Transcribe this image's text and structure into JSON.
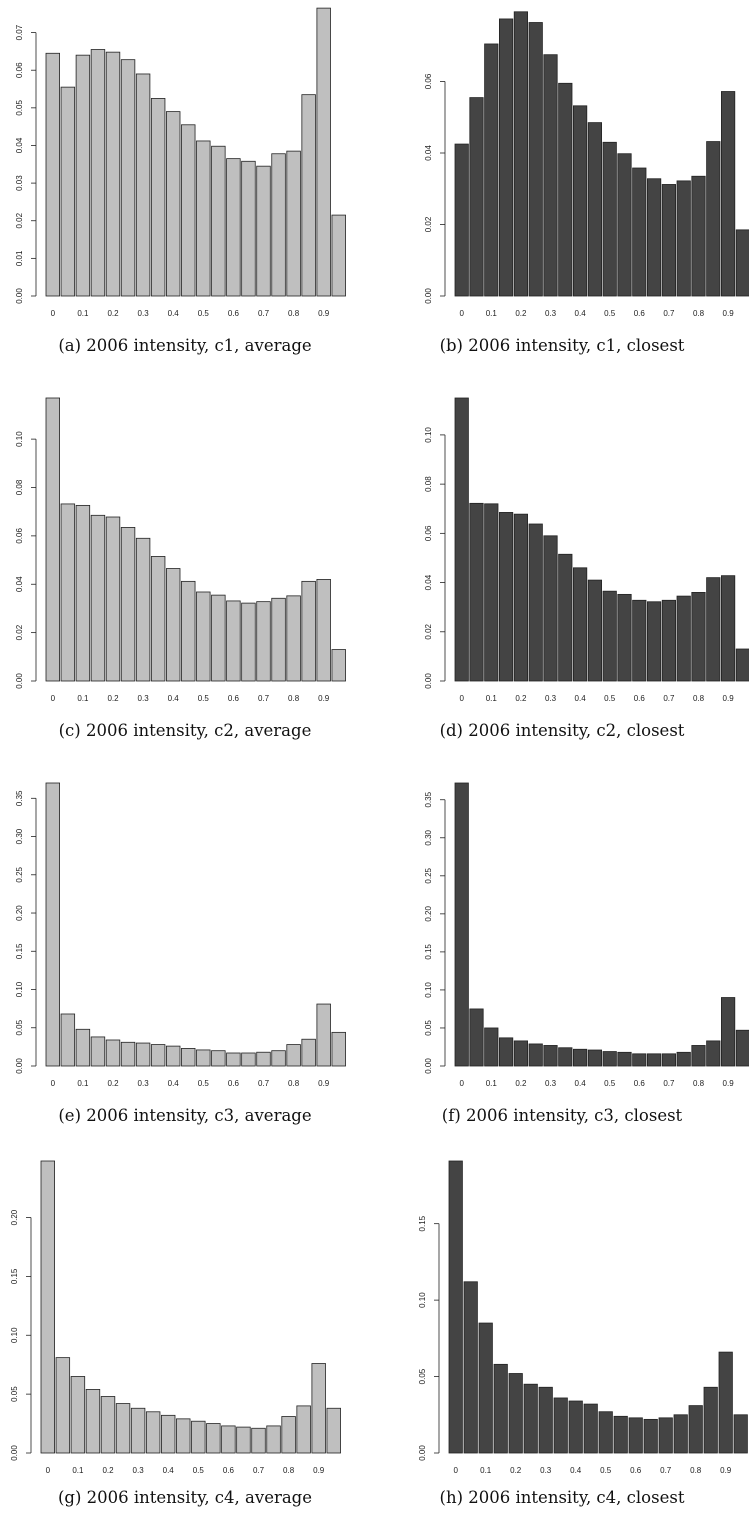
{
  "figure": {
    "background": "#ffffff",
    "panels": [
      {
        "caption": "(a) 2006 intensity, c1, average"
      },
      {
        "caption": "(b) 2006 intensity, c1, closest"
      },
      {
        "caption": "(c) 2006 intensity, c2, average"
      },
      {
        "caption": "(d) 2006 intensity, c2, closest"
      },
      {
        "caption": "(e) 2006 intensity, c3, average"
      },
      {
        "caption": "(f) 2006 intensity, c3, closest"
      },
      {
        "caption": "(g) 2006 intensity, c4, average"
      },
      {
        "caption": "(h) 2006 intensity, c4, closest"
      }
    ]
  },
  "chart_data": [
    {
      "type": "bar",
      "title": "(a) 2006 intensity, c1, average",
      "bar_color": "#bfbfbf",
      "x_tick_labels": [
        "0",
        "0.1",
        "0.2",
        "0.3",
        "0.4",
        "0.5",
        "0.6",
        "0.7",
        "0.8",
        "0.9"
      ],
      "y_ticks": [
        0.0,
        0.01,
        0.02,
        0.03,
        0.04,
        0.05,
        0.06,
        0.07
      ],
      "y_tick_labels": [
        "0.00",
        "0.01",
        "0.02",
        "0.03",
        "0.04",
        "0.05",
        "0.06",
        "0.07"
      ],
      "ylim": [
        0,
        0.076
      ],
      "values": [
        0.0645,
        0.0555,
        0.064,
        0.0655,
        0.0648,
        0.0628,
        0.059,
        0.0525,
        0.049,
        0.0455,
        0.0412,
        0.0398,
        0.0365,
        0.0358,
        0.0345,
        0.0378,
        0.0385,
        0.0535,
        0.0765,
        0.0215
      ]
    },
    {
      "type": "bar",
      "title": "(b) 2006 intensity, c1, closest",
      "bar_color": "#444444",
      "x_tick_labels": [
        "0",
        "0.1",
        "0.2",
        "0.3",
        "0.4",
        "0.5",
        "0.6",
        "0.7",
        "0.8",
        "0.9"
      ],
      "y_ticks": [
        0.0,
        0.02,
        0.04,
        0.06
      ],
      "y_tick_labels": [
        "0.00",
        "0.02",
        "0.04",
        "0.06"
      ],
      "ylim": [
        0,
        0.08
      ],
      "values": [
        0.0425,
        0.0555,
        0.0705,
        0.0775,
        0.0795,
        0.0765,
        0.0675,
        0.0595,
        0.0532,
        0.0485,
        0.043,
        0.0398,
        0.0358,
        0.0328,
        0.0312,
        0.0322,
        0.0335,
        0.0432,
        0.0572,
        0.0185
      ]
    },
    {
      "type": "bar",
      "title": "(c) 2006 intensity, c2, average",
      "bar_color": "#bfbfbf",
      "x_tick_labels": [
        "0",
        "0.1",
        "0.2",
        "0.3",
        "0.4",
        "0.5",
        "0.6",
        "0.7",
        "0.8",
        "0.9"
      ],
      "y_ticks": [
        0.0,
        0.02,
        0.04,
        0.06,
        0.08,
        0.1
      ],
      "y_tick_labels": [
        "0.00",
        "0.02",
        "0.04",
        "0.06",
        "0.08",
        "0.10"
      ],
      "ylim": [
        0,
        0.117
      ],
      "values": [
        0.117,
        0.0732,
        0.0726,
        0.0685,
        0.0678,
        0.0635,
        0.059,
        0.0515,
        0.0465,
        0.0412,
        0.0368,
        0.0355,
        0.0331,
        0.0322,
        0.0328,
        0.0342,
        0.0352,
        0.0412,
        0.042,
        0.013
      ]
    },
    {
      "type": "bar",
      "title": "(d) 2006 intensity, c2, closest",
      "bar_color": "#444444",
      "x_tick_labels": [
        "0",
        "0.1",
        "0.2",
        "0.3",
        "0.4",
        "0.5",
        "0.6",
        "0.7",
        "0.8",
        "0.9"
      ],
      "y_ticks": [
        0.0,
        0.02,
        0.04,
        0.06,
        0.08,
        0.1
      ],
      "y_tick_labels": [
        "0.00",
        "0.02",
        "0.04",
        "0.06",
        "0.08",
        "0.10"
      ],
      "ylim": [
        0,
        0.115
      ],
      "values": [
        0.115,
        0.0722,
        0.072,
        0.0685,
        0.0678,
        0.0638,
        0.059,
        0.0515,
        0.046,
        0.041,
        0.0365,
        0.0352,
        0.0328,
        0.0322,
        0.0328,
        0.0345,
        0.036,
        0.042,
        0.0428,
        0.013
      ]
    },
    {
      "type": "bar",
      "title": "(e) 2006 intensity, c3, average",
      "bar_color": "#bfbfbf",
      "x_tick_labels": [
        "0",
        "0.1",
        "0.2",
        "0.3",
        "0.4",
        "0.5",
        "0.6",
        "0.7",
        "0.8",
        "0.9"
      ],
      "y_ticks": [
        0.0,
        0.05,
        0.1,
        0.15,
        0.2,
        0.25,
        0.3,
        0.35
      ],
      "y_tick_labels": [
        "0.00",
        "0.05",
        "0.10",
        "0.15",
        "0.20",
        "0.25",
        "0.30",
        "0.35"
      ],
      "ylim": [
        0,
        0.37
      ],
      "values": [
        0.37,
        0.068,
        0.048,
        0.038,
        0.034,
        0.031,
        0.03,
        0.028,
        0.026,
        0.023,
        0.021,
        0.02,
        0.017,
        0.017,
        0.018,
        0.02,
        0.028,
        0.035,
        0.081,
        0.044
      ]
    },
    {
      "type": "bar",
      "title": "(f) 2006 intensity, c3, closest",
      "bar_color": "#444444",
      "x_tick_labels": [
        "0",
        "0.1",
        "0.2",
        "0.3",
        "0.4",
        "0.5",
        "0.6",
        "0.7",
        "0.8",
        "0.9"
      ],
      "y_ticks": [
        0.0,
        0.05,
        0.1,
        0.15,
        0.2,
        0.25,
        0.3,
        0.35
      ],
      "y_tick_labels": [
        "0.00",
        "0.05",
        "0.10",
        "0.15",
        "0.20",
        "0.25",
        "0.30",
        "0.35"
      ],
      "ylim": [
        0,
        0.372
      ],
      "values": [
        0.372,
        0.075,
        0.05,
        0.037,
        0.033,
        0.029,
        0.027,
        0.024,
        0.022,
        0.021,
        0.019,
        0.018,
        0.016,
        0.016,
        0.016,
        0.018,
        0.027,
        0.033,
        0.09,
        0.047
      ]
    },
    {
      "type": "bar",
      "title": "(g) 2006 intensity, c4, average",
      "bar_color": "#bfbfbf",
      "x_tick_labels": [
        "0",
        "0.1",
        "0.2",
        "0.3",
        "0.4",
        "0.5",
        "0.6",
        "0.7",
        "0.8",
        "0.9"
      ],
      "y_ticks": [
        0.0,
        0.05,
        0.1,
        0.15,
        0.2
      ],
      "y_tick_labels": [
        "0.00",
        "0.05",
        "0.10",
        "0.15",
        "0.20"
      ],
      "ylim": [
        0,
        0.248
      ],
      "values": [
        0.248,
        0.081,
        0.065,
        0.054,
        0.048,
        0.042,
        0.038,
        0.035,
        0.032,
        0.029,
        0.027,
        0.025,
        0.023,
        0.022,
        0.021,
        0.023,
        0.031,
        0.04,
        0.076,
        0.038
      ]
    },
    {
      "type": "bar",
      "title": "(h) 2006 intensity, c4, closest",
      "bar_color": "#444444",
      "x_tick_labels": [
        "0",
        "0.1",
        "0.2",
        "0.3",
        "0.4",
        "0.5",
        "0.6",
        "0.7",
        "0.8",
        "0.9"
      ],
      "y_ticks": [
        0.0,
        0.05,
        0.1,
        0.15
      ],
      "y_tick_labels": [
        "0.00",
        "0.05",
        "0.10",
        "0.15"
      ],
      "ylim": [
        0,
        0.191
      ],
      "values": [
        0.191,
        0.112,
        0.085,
        0.058,
        0.052,
        0.045,
        0.043,
        0.036,
        0.034,
        0.032,
        0.027,
        0.024,
        0.023,
        0.022,
        0.023,
        0.025,
        0.031,
        0.043,
        0.066,
        0.025
      ]
    }
  ]
}
